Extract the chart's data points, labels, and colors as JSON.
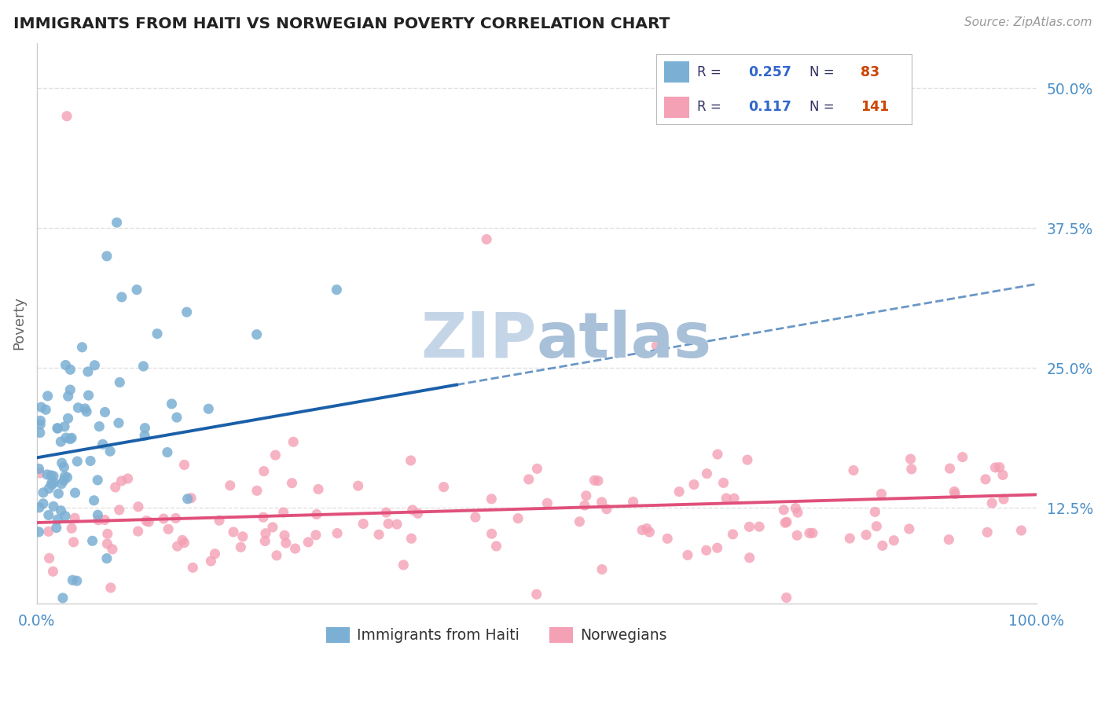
{
  "title": "IMMIGRANTS FROM HAITI VS NORWEGIAN POVERTY CORRELATION CHART",
  "source": "Source: ZipAtlas.com",
  "ylabel": "Poverty",
  "y_ticks": [
    0.125,
    0.25,
    0.375,
    0.5
  ],
  "y_tick_labels": [
    "12.5%",
    "25.0%",
    "37.5%",
    "50.0%"
  ],
  "xlim": [
    0.0,
    1.0
  ],
  "ylim": [
    0.04,
    0.54
  ],
  "series": [
    {
      "name": "Immigrants from Haiti",
      "R": 0.257,
      "N": 83,
      "color": "#7bafd4",
      "line_color": "#1a5fa8",
      "line_solid_end": 0.42,
      "line_end": 1.0,
      "intercept": 0.17,
      "slope": 0.155
    },
    {
      "name": "Norwegians",
      "R": 0.117,
      "N": 141,
      "color": "#f4a0b5",
      "line_color": "#e0507a",
      "line_solid_end": 1.0,
      "intercept": 0.112,
      "slope": 0.025
    }
  ],
  "watermark_part1": "ZIP",
  "watermark_part2": "atlas",
  "watermark_color1": "#c5d5e8",
  "watermark_color2": "#a8c0d8",
  "background_color": "#ffffff",
  "grid_color": "#dddddd",
  "title_color": "#222222",
  "axis_label_color": "#4d90c8",
  "legend_R_color": "#3366cc",
  "legend_N_color": "#cc4400",
  "legend_text_color": "#333366"
}
